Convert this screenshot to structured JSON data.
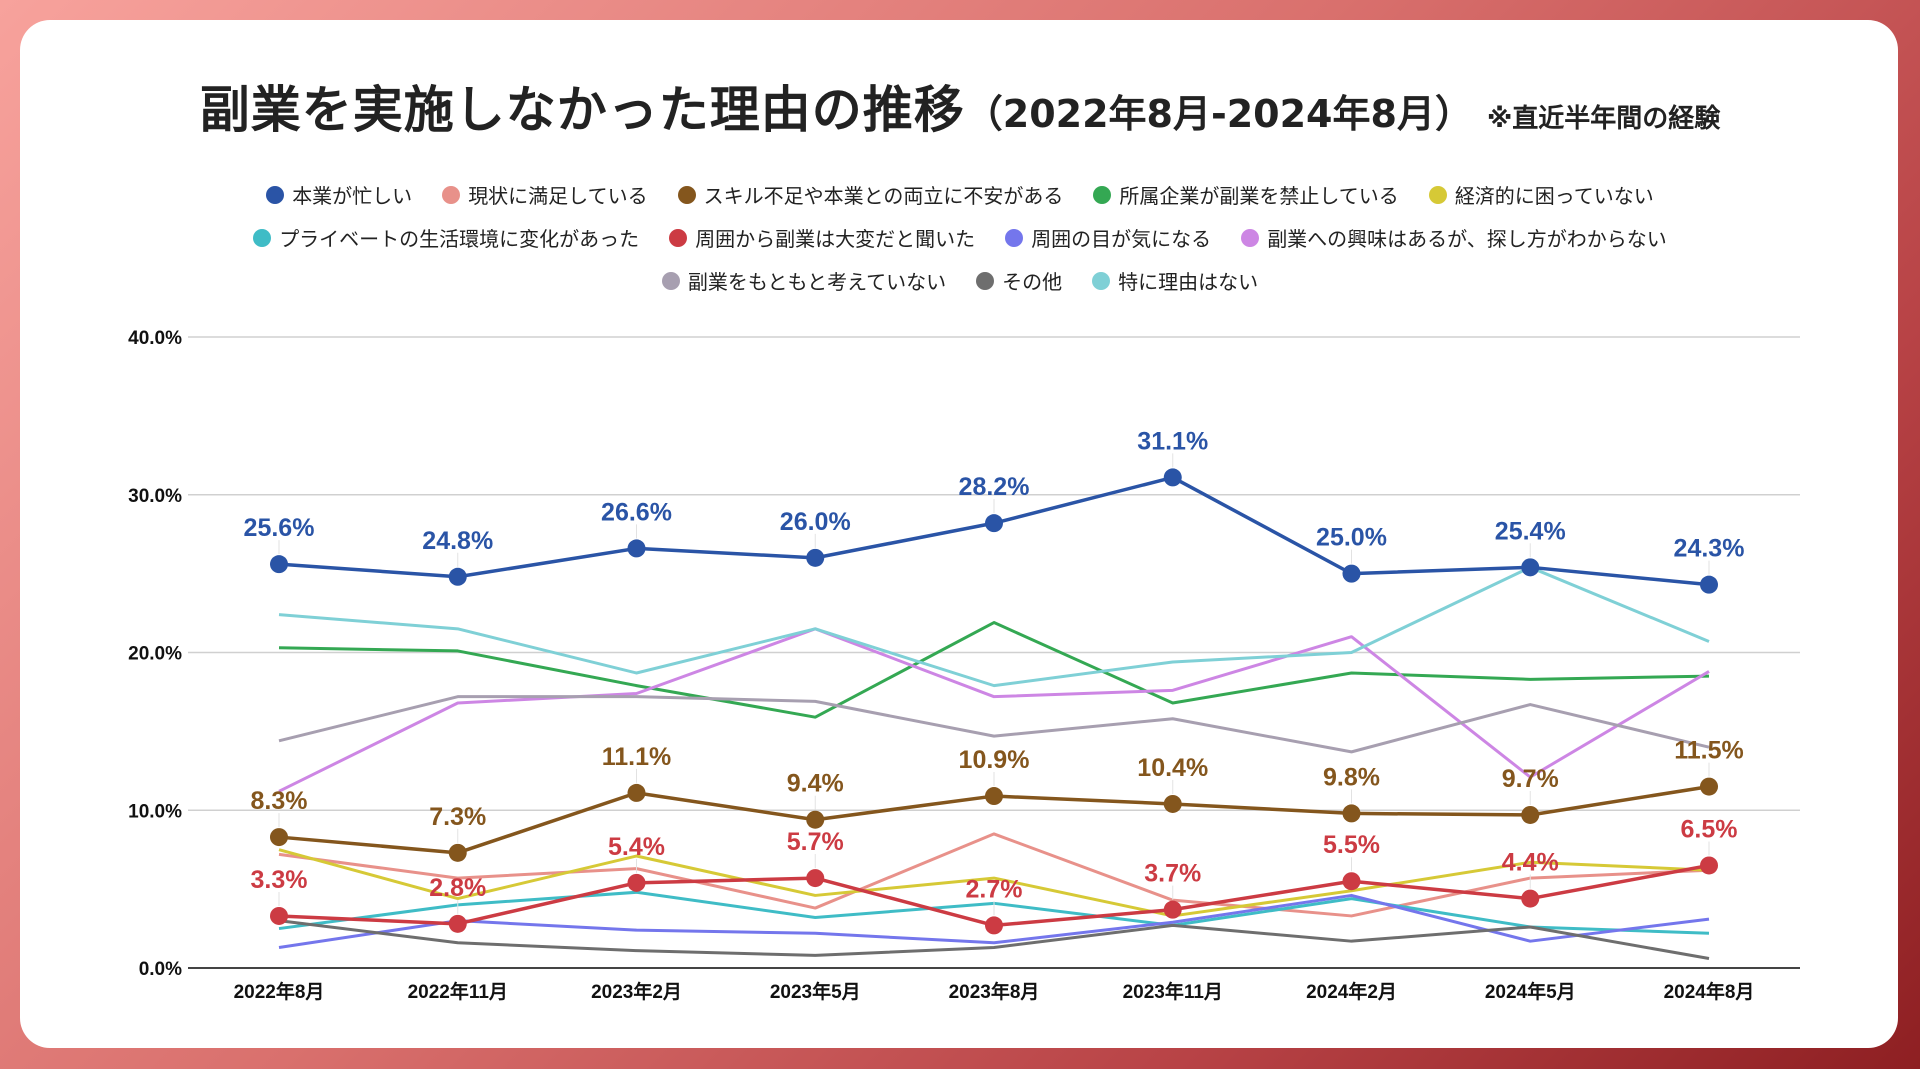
{
  "title": {
    "main": "副業を実施しなかった理由の推移",
    "range": "（2022年8月-2024年8月）",
    "note": "※直近半年間の経験"
  },
  "chart_data": {
    "type": "line",
    "title": "副業を実施しなかった理由の推移（2022年8月-2024年8月）",
    "subtitle": "※直近半年間の経験",
    "xlabel": "",
    "ylabel": "",
    "ylim": [
      0,
      40
    ],
    "yticks": [
      0,
      10,
      20,
      30,
      40
    ],
    "ytick_labels": [
      "0.0%",
      "10.0%",
      "20.0%",
      "30.0%",
      "40.0%"
    ],
    "grid": true,
    "legend_position": "top-center",
    "categories": [
      "2022年8月",
      "2022年11月",
      "2023年2月",
      "2023年5月",
      "2023年8月",
      "2023年11月",
      "2024年2月",
      "2024年5月",
      "2024年8月"
    ],
    "series": [
      {
        "name": "本業が忙しい",
        "color": "#2a54a6",
        "markers": true,
        "labels": true,
        "values": [
          25.6,
          24.8,
          26.6,
          26.0,
          28.2,
          31.1,
          25.0,
          25.4,
          24.3
        ]
      },
      {
        "name": "現状に満足している",
        "color": "#e8918a",
        "markers": false,
        "labels": false,
        "values": [
          7.2,
          5.7,
          6.3,
          3.8,
          8.5,
          4.3,
          3.3,
          5.7,
          6.2
        ]
      },
      {
        "name": "スキル不足や本業との両立に不安がある",
        "color": "#84561d",
        "markers": true,
        "labels": true,
        "values": [
          8.3,
          7.3,
          11.1,
          9.4,
          10.9,
          10.4,
          9.8,
          9.7,
          11.5
        ]
      },
      {
        "name": "所属企業が副業を禁止している",
        "color": "#34a853",
        "markers": false,
        "labels": false,
        "values": [
          20.3,
          20.1,
          17.9,
          15.9,
          21.9,
          16.8,
          18.7,
          18.3,
          18.5
        ]
      },
      {
        "name": "経済的に困っていない",
        "color": "#d6c936",
        "markers": false,
        "labels": false,
        "values": [
          7.5,
          4.4,
          7.1,
          4.6,
          5.7,
          3.3,
          4.9,
          6.7,
          6.2
        ]
      },
      {
        "name": "プライベートの生活環境に変化があった",
        "color": "#3fbcc6",
        "markers": false,
        "labels": false,
        "values": [
          2.5,
          4.0,
          4.8,
          3.2,
          4.1,
          2.7,
          4.4,
          2.6,
          2.2
        ]
      },
      {
        "name": "周囲から副業は大変だと聞いた",
        "color": "#cc3b43",
        "markers": true,
        "labels": true,
        "values": [
          3.3,
          2.8,
          5.4,
          5.7,
          2.7,
          3.7,
          5.5,
          4.4,
          6.5
        ]
      },
      {
        "name": "周囲の目が気になる",
        "color": "#7476ec",
        "markers": false,
        "labels": false,
        "values": [
          1.3,
          3.0,
          2.4,
          2.2,
          1.6,
          2.9,
          4.6,
          1.7,
          3.1
        ]
      },
      {
        "name": "副業への興味はあるが、探し方がわからない",
        "color": "#cd86e4",
        "markers": false,
        "labels": false,
        "values": [
          11.2,
          16.8,
          17.4,
          21.5,
          17.2,
          17.6,
          21.0,
          12.1,
          18.8
        ]
      },
      {
        "name": "副業をもともと考えていない",
        "color": "#a79fb0",
        "markers": false,
        "labels": false,
        "values": [
          14.4,
          17.2,
          17.2,
          16.9,
          14.7,
          15.8,
          13.7,
          16.7,
          14.0
        ]
      },
      {
        "name": "その他",
        "color": "#6e6e6e",
        "markers": false,
        "labels": false,
        "values": [
          3.0,
          1.6,
          1.1,
          0.8,
          1.3,
          2.7,
          1.7,
          2.6,
          0.6
        ]
      },
      {
        "name": "特に理由はない",
        "color": "#7fd0d6",
        "markers": false,
        "labels": false,
        "values": [
          22.4,
          21.5,
          18.7,
          21.5,
          17.9,
          19.4,
          20.0,
          25.4,
          20.7
        ]
      }
    ]
  },
  "legend_rows": [
    [
      0,
      1,
      2,
      3,
      4
    ],
    [
      5,
      6,
      7,
      8
    ],
    [
      9,
      10,
      11
    ]
  ]
}
